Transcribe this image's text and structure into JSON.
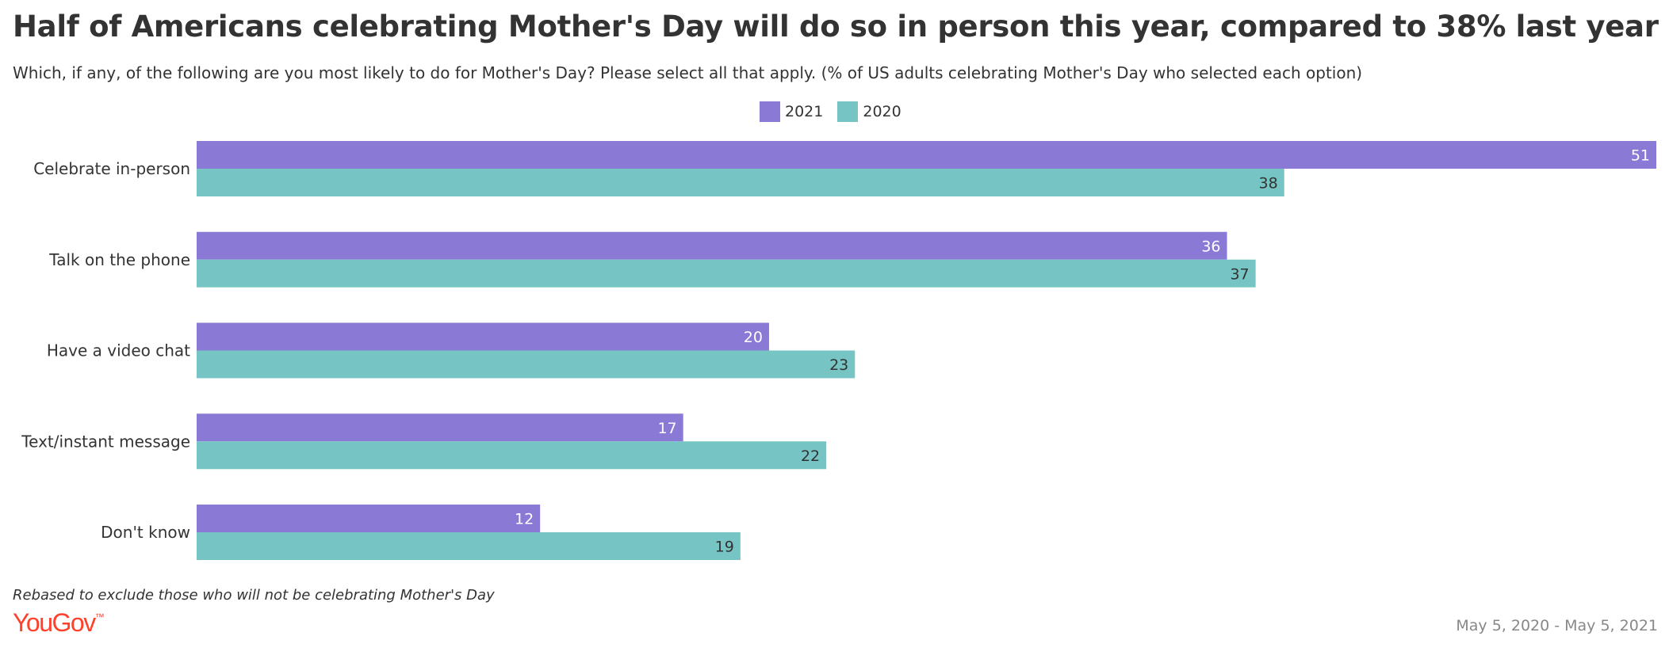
{
  "title": "Half of Americans celebrating Mother's Day will do so in person this year, compared to 38% last year",
  "subtitle": "Which, if any, of the following are you most likely to do for Mother's Day? Please select all that apply. (% of US adults celebrating Mother's Day who selected each option)",
  "footnote": "Rebased to exclude those who will not be celebrating Mother's Day",
  "brand": "YouGov",
  "date_range": "May 5, 2020 - May 5, 2021",
  "chart_data": {
    "type": "bar",
    "orientation": "horizontal",
    "categories": [
      "Celebrate in-person",
      "Talk on the phone",
      "Have a video chat",
      "Text/instant message",
      "Don't know"
    ],
    "series": [
      {
        "name": "2021",
        "color": "#8a7ad6",
        "label_color": "#ffffff",
        "values": [
          51,
          36,
          20,
          17,
          12
        ]
      },
      {
        "name": "2020",
        "color": "#76c5c4",
        "label_color": "#333333",
        "values": [
          38,
          37,
          23,
          22,
          19
        ]
      }
    ],
    "xlim": [
      0,
      51
    ],
    "legend_position": "top-center",
    "grid": false
  }
}
